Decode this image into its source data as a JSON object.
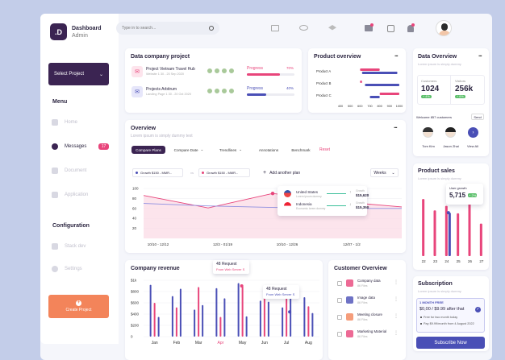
{
  "brand": {
    "letter": ".D",
    "title": "Dashboard",
    "subtitle": "Admin"
  },
  "search": {
    "placeholder": "Type in to search..."
  },
  "sidebar": {
    "select_project": "Select Project",
    "menu_heading": "Menu",
    "items": [
      {
        "label": "Home"
      },
      {
        "label": "Messages",
        "badge": "17"
      },
      {
        "label": "Document"
      },
      {
        "label": "Application"
      }
    ],
    "config_heading": "Configuration",
    "config_items": [
      {
        "label": "Stack dev"
      },
      {
        "label": "Settings"
      }
    ],
    "create_project": "Create Project"
  },
  "data_company": {
    "title": "Data company project",
    "projects": [
      {
        "name": "Project Vietnam Travel Hub",
        "meta": "Website 1 30 - 20 Sep 2020",
        "progress_label": "Progress",
        "progress_pct": "70%",
        "progress": 0.7,
        "color": "#e8457b"
      },
      {
        "name": "Projects Arbitrum",
        "meta": "Landing Page 1 30 - 20 Oct 2020",
        "progress_label": "Progress",
        "progress_pct": "40%",
        "progress": 0.4,
        "color": "#4a4fb6"
      }
    ]
  },
  "product_overview": {
    "title": "Product overview",
    "chart_data": {
      "type": "bar",
      "categories": [
        "Product A",
        "Product B",
        "Product C"
      ],
      "ticks": [
        "400",
        "500",
        "600",
        "700",
        "800",
        "900",
        "1000"
      ],
      "series": [
        {
          "values": [
            [
              600,
              800
            ],
            [
              600,
              620
            ],
            [
              800,
              1000
            ]
          ],
          "color": "#e8457b"
        },
        {
          "values": [
            [
              620,
              980
            ],
            [
              650,
              1000
            ],
            [
              700,
              800
            ]
          ],
          "color": "#4a4fb6"
        }
      ]
    }
  },
  "overview": {
    "title": "Overview",
    "subtitle": "Lorem ipsum is simply dummy text",
    "tabs": [
      "Compare Plans",
      "Compare Date",
      "Trendlines",
      "Annotations",
      "Benchmark"
    ],
    "reset": "Reset",
    "filter1": "Growth $150 - MMR...",
    "vs": "vs",
    "filter2": "Growth $150 - MMR...",
    "add_plan": "Add another plan",
    "period": "Weeks",
    "legend": [
      {
        "country": "United States",
        "sub": "Lorem ipsum dummy",
        "val_label": "Growth",
        "value": "$15,620"
      },
      {
        "country": "Indonesia",
        "sub": "Economic lorem dummy",
        "val_label": "Growth",
        "value": "$15,350"
      }
    ],
    "chart_data": {
      "type": "area",
      "x": [
        "10/10 - 12/12",
        "12/3 - 01/19",
        "10/10 - 12/26",
        "12/07 - 1/2",
        "12/26 - 1/2"
      ],
      "yticks": [
        "100",
        "80",
        "60",
        "40",
        "20"
      ],
      "ylim": [
        0,
        100
      ],
      "series": [
        {
          "color": "#e8457b",
          "points": [
            [
              0,
              86
            ],
            [
              1,
              61
            ],
            [
              2,
              90
            ],
            [
              3,
              74
            ],
            [
              4,
              63
            ]
          ]
        },
        {
          "color": "#8f8fe0",
          "points": [
            [
              0,
              70
            ],
            [
              1,
              65
            ],
            [
              2,
              62
            ],
            [
              3,
              60
            ],
            [
              4,
              60
            ]
          ]
        }
      ]
    }
  },
  "company_revenue": {
    "title": "Company revenue",
    "tooltip1": {
      "title": "48 Request",
      "sub": "From Web Server S"
    },
    "tooltip2": {
      "title": "48 Request",
      "sub": "From Web Server S"
    },
    "chart_data": {
      "type": "bar",
      "categories": [
        "Jan",
        "Feb",
        "Mar",
        "Apr",
        "May",
        "Jun",
        "Jul",
        "Aug"
      ],
      "highlight": "Apr",
      "yticks": [
        "$1k",
        "$800",
        "$600",
        "$400",
        "$200",
        "0"
      ],
      "ylim": [
        0,
        1000
      ],
      "series": [
        {
          "color": "#4a4fb6",
          "values": [
            920,
            720,
            480,
            860,
            950,
            640,
            520,
            700
          ]
        },
        {
          "color": "#e8457b",
          "values": [
            600,
            520,
            880,
            350,
            900,
            820,
            690,
            540
          ]
        },
        {
          "color": "#4a4fb6",
          "values": [
            350,
            850,
            560,
            680,
            360,
            620,
            880,
            420
          ]
        }
      ]
    }
  },
  "customer_overview": {
    "title": "Customer Overview",
    "rows": [
      {
        "name": "Company data",
        "meta": "86 Files"
      },
      {
        "name": "Image data",
        "meta": "86 Files"
      },
      {
        "name": "Meeting closure",
        "meta": "86 Files"
      },
      {
        "name": "Marketing Material",
        "meta": "86 Files"
      }
    ]
  },
  "data_overview": {
    "title": "Data Overview",
    "subtitle": "Lorem ipsum is simply dummy",
    "stats": [
      {
        "label": "Customers",
        "value": "1024",
        "trend": "+ 4%"
      },
      {
        "label": "Visitors",
        "value": "256k",
        "trend": "+ 6%"
      }
    ],
    "welcome": "Welcome 857 customers",
    "send": "Send",
    "people": [
      {
        "name": "Tom Kim"
      },
      {
        "name": "Jason Zhai"
      }
    ],
    "view_all": "View All"
  },
  "product_sales": {
    "title": "Product sales",
    "subtitle": "Lorem ipsum is simply dummy",
    "tooltip": {
      "label": "User growth",
      "value": "5,715",
      "trend": "+ 2%"
    },
    "chart_data": {
      "type": "bar",
      "categories": [
        "22",
        "23",
        "24",
        "25",
        "26",
        "27"
      ],
      "series": [
        {
          "color": "#e8457b",
          "values": [
            100,
            80,
            88,
            75,
            92,
            57
          ]
        },
        {
          "color": "#4a4fb6",
          "values": [
            0,
            0,
            76,
            0,
            0,
            0
          ]
        }
      ],
      "ylim": [
        0,
        110
      ]
    }
  },
  "subscription": {
    "title": "Subscription",
    "subtitle": "Lorem ipsum is simply dummy",
    "badge": "1 MONTH FREE",
    "price_line": "$0,00 / $9.99 after that",
    "bullets": [
      "Free for two month today",
      "Pay $9.99/month from 4 August 2022"
    ],
    "button": "Subscribe Now"
  }
}
